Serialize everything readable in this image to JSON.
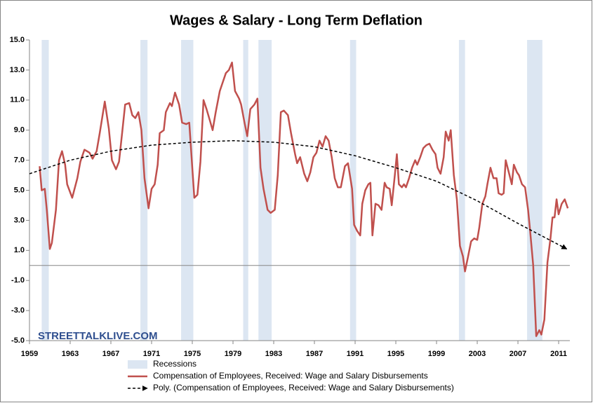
{
  "chart_data": {
    "type": "line",
    "title": "Wages & Salary - Long Term Deflation",
    "annotation": "STREETTALKLIVE.COM",
    "xlim": [
      1959,
      2012.1
    ],
    "xticks": [
      1959,
      1963,
      1967,
      1971,
      1975,
      1979,
      1983,
      1987,
      1991,
      1995,
      1999,
      2003,
      2007,
      2011
    ],
    "ylim": [
      -5,
      15
    ],
    "yticks": [
      {
        "value": -5,
        "label": "-5.0"
      },
      {
        "value": -3,
        "label": "-3.0"
      },
      {
        "value": -1,
        "label": "-1.0"
      },
      {
        "value": 1,
        "label": "1.0"
      },
      {
        "value": 3,
        "label": "3.0"
      },
      {
        "value": 5,
        "label": "5.0"
      },
      {
        "value": 7,
        "label": "7.0"
      },
      {
        "value": 9,
        "label": "9.0"
      },
      {
        "value": 11,
        "label": "11.0"
      },
      {
        "value": 13,
        "label": "13.0"
      },
      {
        "value": 15,
        "label": "15.0"
      }
    ],
    "grid": false,
    "recessions": {
      "name": "Recessions",
      "color": "#dce6f2",
      "ranges": [
        [
          1960.2,
          1960.9
        ],
        [
          1969.9,
          1970.6
        ],
        [
          1973.9,
          1975.1
        ],
        [
          1980.0,
          1980.5
        ],
        [
          1981.5,
          1982.8
        ],
        [
          1990.5,
          1991.1
        ],
        [
          2001.2,
          2001.8
        ],
        [
          2007.9,
          2009.4
        ]
      ]
    },
    "series": [
      {
        "name": "Compensation of Employees, Received: Wage and Salary Disbursements",
        "color": "#c0504d",
        "width": 2.5,
        "x": [
          1960.0,
          1960.2,
          1960.5,
          1960.7,
          1961.0,
          1961.2,
          1961.6,
          1961.9,
          1962.2,
          1962.5,
          1962.7,
          1963.2,
          1963.7,
          1964.0,
          1964.4,
          1964.9,
          1965.2,
          1965.6,
          1965.9,
          1966.4,
          1966.8,
          1967.1,
          1967.5,
          1967.8,
          1968.1,
          1968.4,
          1968.8,
          1969.1,
          1969.4,
          1969.7,
          1970.0,
          1970.3,
          1970.7,
          1971.0,
          1971.3,
          1971.6,
          1971.8,
          1972.2,
          1972.4,
          1972.8,
          1973.0,
          1973.3,
          1973.7,
          1974.0,
          1974.4,
          1974.7,
          1975.0,
          1975.2,
          1975.5,
          1975.8,
          1976.1,
          1976.4,
          1976.7,
          1977.0,
          1977.3,
          1977.7,
          1978.0,
          1978.3,
          1978.6,
          1978.9,
          1979.2,
          1979.6,
          1979.8,
          1980.1,
          1980.4,
          1980.7,
          1981.1,
          1981.4,
          1981.7,
          1982.0,
          1982.4,
          1982.7,
          1983.1,
          1983.4,
          1983.7,
          1984.0,
          1984.4,
          1984.7,
          1985.1,
          1985.3,
          1985.6,
          1986.0,
          1986.3,
          1986.6,
          1986.9,
          1987.2,
          1987.5,
          1987.8,
          1988.1,
          1988.4,
          1988.7,
          1989.0,
          1989.3,
          1989.6,
          1990.0,
          1990.3,
          1990.7,
          1990.9,
          1991.2,
          1991.5,
          1991.7,
          1992.0,
          1992.3,
          1992.5,
          1992.7,
          1993.0,
          1993.3,
          1993.6,
          1993.9,
          1994.1,
          1994.4,
          1994.6,
          1994.9,
          1995.1,
          1995.3,
          1995.6,
          1995.8,
          1996.0,
          1996.3,
          1996.6,
          1996.9,
          1997.1,
          1997.4,
          1997.7,
          1998.0,
          1998.3,
          1998.6,
          1998.9,
          1999.1,
          1999.4,
          1999.7,
          1999.9,
          2000.2,
          2000.4,
          2000.7,
          2001.0,
          2001.3,
          2001.6,
          2001.8,
          2002.1,
          2002.4,
          2002.7,
          2003.0,
          2003.2,
          2003.5,
          2003.8,
          2004.0,
          2004.3,
          2004.6,
          2004.9,
          2005.1,
          2005.4,
          2005.6,
          2005.8,
          2006.1,
          2006.4,
          2006.6,
          2006.9,
          2007.1,
          2007.4,
          2007.7,
          2008.0,
          2008.2,
          2008.5,
          2008.8,
          2009.1,
          2009.3,
          2009.6,
          2009.9,
          2010.2,
          2010.4,
          2010.6,
          2010.8,
          2011.0,
          2011.3,
          2011.6,
          2011.9
        ],
        "values": [
          6.6,
          5.0,
          5.1,
          3.7,
          1.1,
          1.5,
          3.7,
          7.0,
          7.6,
          6.7,
          5.4,
          4.5,
          5.8,
          6.9,
          7.7,
          7.5,
          7.1,
          7.6,
          8.8,
          10.9,
          9.1,
          7.0,
          6.4,
          6.9,
          8.8,
          10.7,
          10.8,
          10.0,
          9.8,
          10.2,
          9.0,
          5.8,
          3.8,
          5.1,
          5.4,
          6.7,
          8.8,
          9.0,
          10.2,
          10.8,
          10.6,
          11.5,
          10.7,
          9.5,
          9.4,
          9.5,
          6.5,
          4.5,
          4.7,
          6.9,
          11.0,
          10.4,
          9.7,
          9.0,
          10.2,
          11.6,
          12.2,
          12.8,
          13.0,
          13.5,
          11.6,
          11.1,
          10.7,
          9.6,
          8.6,
          10.4,
          10.7,
          11.1,
          6.5,
          5.1,
          3.7,
          3.5,
          3.7,
          6.0,
          10.2,
          10.3,
          10.0,
          8.8,
          7.4,
          6.8,
          7.2,
          6.1,
          5.6,
          6.2,
          7.2,
          7.5,
          8.3,
          7.9,
          8.6,
          8.3,
          7.2,
          5.8,
          5.2,
          5.2,
          6.6,
          6.8,
          5.1,
          2.7,
          2.3,
          2.0,
          4.1,
          5.0,
          5.4,
          5.5,
          2.0,
          4.1,
          4.0,
          3.7,
          5.5,
          5.2,
          5.1,
          4.0,
          6.0,
          7.4,
          5.4,
          5.2,
          5.4,
          5.2,
          5.8,
          6.5,
          7.0,
          6.7,
          7.2,
          7.8,
          8.0,
          8.1,
          7.7,
          7.4,
          6.5,
          6.1,
          7.2,
          8.9,
          8.3,
          9.0,
          6.0,
          4.4,
          1.3,
          0.6,
          -0.4,
          0.6,
          1.6,
          1.8,
          1.7,
          2.5,
          4.1,
          4.6,
          5.4,
          6.5,
          5.8,
          5.8,
          4.8,
          4.7,
          4.8,
          7.0,
          6.2,
          5.4,
          6.7,
          6.2,
          6.0,
          5.4,
          5.2,
          3.7,
          2.3,
          0.0,
          -4.7,
          -4.3,
          -4.6,
          -3.6,
          0.2,
          1.8,
          3.2,
          3.2,
          4.4,
          3.4,
          4.1,
          4.4,
          3.8
        ]
      },
      {
        "name": "Poly. (Compensation of Employees, Received: Wage and Salary Disbursements)",
        "color": "#000000",
        "width": 1.5,
        "dashed": true,
        "arrow": true,
        "x": [
          1959,
          1963,
          1967,
          1971,
          1975,
          1979,
          1983,
          1987,
          1991,
          1995,
          1999,
          2003,
          2007,
          2011.8
        ],
        "values": [
          6.1,
          7.0,
          7.6,
          8.0,
          8.2,
          8.3,
          8.2,
          7.9,
          7.3,
          6.5,
          5.6,
          4.3,
          2.8,
          1.1
        ]
      }
    ]
  }
}
